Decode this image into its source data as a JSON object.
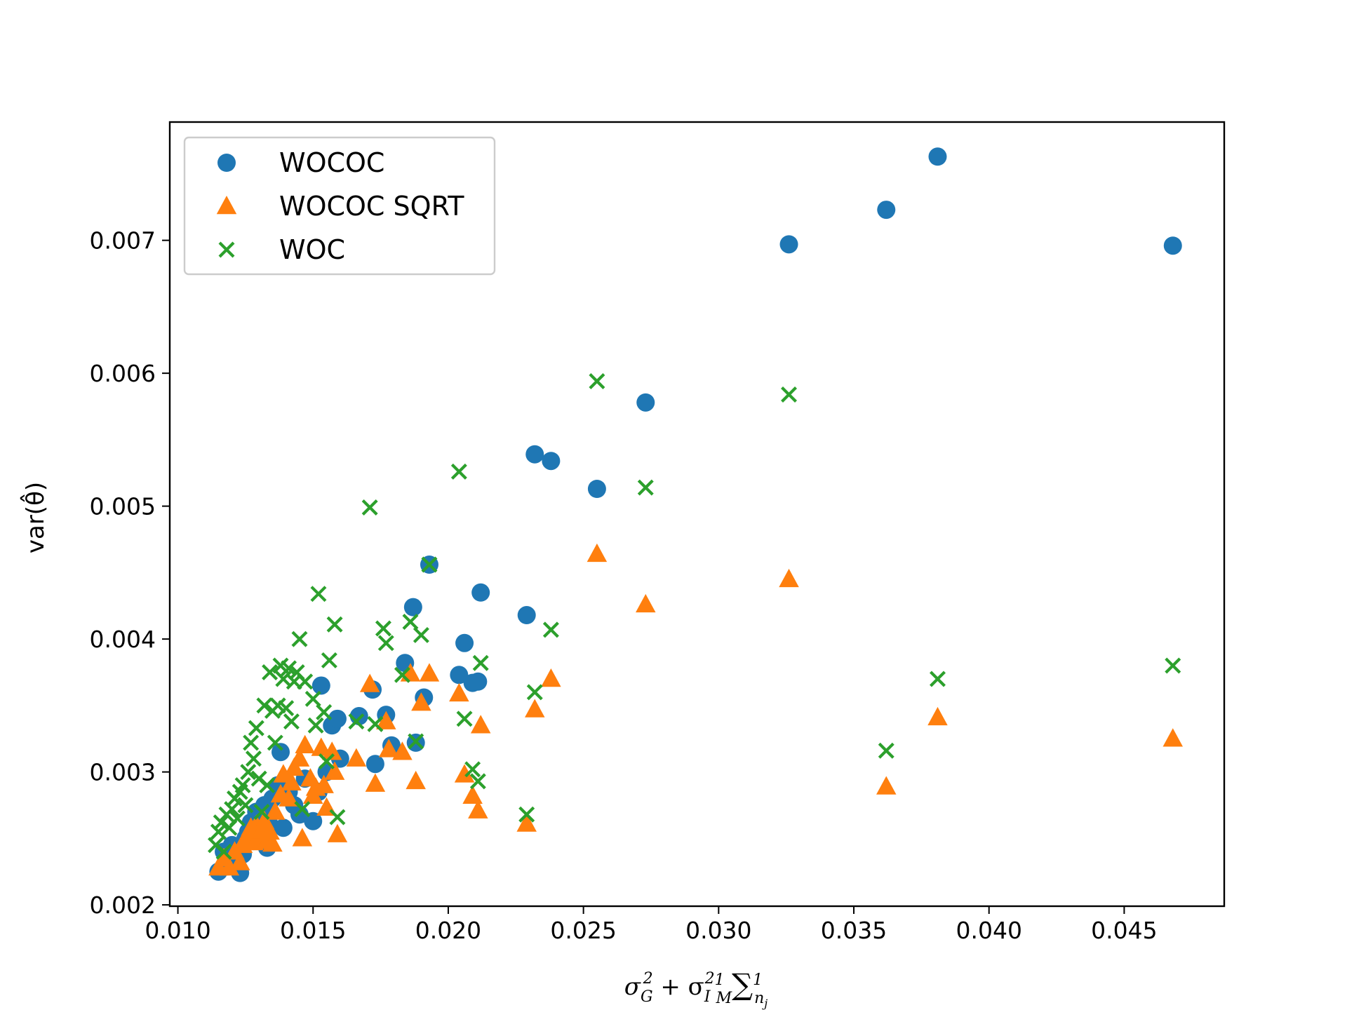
{
  "chart_data": {
    "type": "scatter",
    "title": "",
    "xlabel": "σ_G² + σ_I² (1/M) Σ 1/n_j",
    "ylabel": "var(θ̂)",
    "xlim": [
      0.0097,
      0.0487
    ],
    "ylim": [
      0.00199,
      0.00789
    ],
    "xticks": [
      0.01,
      0.015,
      0.02,
      0.025,
      0.03,
      0.035,
      0.04,
      0.045
    ],
    "xtick_labels": [
      "0.010",
      "0.015",
      "0.020",
      "0.025",
      "0.030",
      "0.035",
      "0.040",
      "0.045"
    ],
    "yticks": [
      0.002,
      0.003,
      0.004,
      0.005,
      0.006,
      0.007
    ],
    "ytick_labels": [
      "0.002",
      "0.003",
      "0.004",
      "0.005",
      "0.006",
      "0.007"
    ],
    "legend_position": "top-left",
    "grid": false,
    "series": [
      {
        "name": "WOCOC",
        "marker": "circle",
        "color": "#1f77b4",
        "points": [
          [
            0.0115,
            0.00225
          ],
          [
            0.0117,
            0.0024
          ],
          [
            0.0118,
            0.00235
          ],
          [
            0.012,
            0.00245
          ],
          [
            0.0121,
            0.0023
          ],
          [
            0.0123,
            0.00224
          ],
          [
            0.0124,
            0.00238
          ],
          [
            0.0125,
            0.0025
          ],
          [
            0.0126,
            0.00255
          ],
          [
            0.0127,
            0.00262
          ],
          [
            0.0128,
            0.00248
          ],
          [
            0.0129,
            0.0027
          ],
          [
            0.013,
            0.00258
          ],
          [
            0.0131,
            0.00266
          ],
          [
            0.0132,
            0.00275
          ],
          [
            0.0133,
            0.00243
          ],
          [
            0.0134,
            0.0026
          ],
          [
            0.0135,
            0.0028
          ],
          [
            0.0137,
            0.0029
          ],
          [
            0.0138,
            0.00315
          ],
          [
            0.0139,
            0.00258
          ],
          [
            0.0141,
            0.00285
          ],
          [
            0.0143,
            0.00275
          ],
          [
            0.0145,
            0.00268
          ],
          [
            0.0147,
            0.00295
          ],
          [
            0.015,
            0.00263
          ],
          [
            0.0152,
            0.00285
          ],
          [
            0.0153,
            0.00365
          ],
          [
            0.0155,
            0.003
          ],
          [
            0.0157,
            0.00335
          ],
          [
            0.0159,
            0.0034
          ],
          [
            0.016,
            0.0031
          ],
          [
            0.0167,
            0.00342
          ],
          [
            0.0172,
            0.00362
          ],
          [
            0.0173,
            0.00306
          ],
          [
            0.0177,
            0.00343
          ],
          [
            0.0179,
            0.0032
          ],
          [
            0.0184,
            0.00382
          ],
          [
            0.0187,
            0.00424
          ],
          [
            0.0188,
            0.00322
          ],
          [
            0.0191,
            0.00356
          ],
          [
            0.0193,
            0.00456
          ],
          [
            0.0204,
            0.00373
          ],
          [
            0.0206,
            0.00397
          ],
          [
            0.0209,
            0.00367
          ],
          [
            0.0211,
            0.00368
          ],
          [
            0.0212,
            0.00435
          ],
          [
            0.0229,
            0.00418
          ],
          [
            0.0232,
            0.00539
          ],
          [
            0.0238,
            0.00534
          ],
          [
            0.0255,
            0.00513
          ],
          [
            0.0273,
            0.00578
          ],
          [
            0.0326,
            0.00697
          ],
          [
            0.0362,
            0.00723
          ],
          [
            0.0381,
            0.00763
          ],
          [
            0.0468,
            0.00696
          ]
        ]
      },
      {
        "name": "WOCOC SQRT",
        "marker": "triangle",
        "color": "#ff7f0e",
        "points": [
          [
            0.0115,
            0.00228
          ],
          [
            0.0117,
            0.00235
          ],
          [
            0.0119,
            0.00228
          ],
          [
            0.0121,
            0.0024
          ],
          [
            0.0123,
            0.00232
          ],
          [
            0.0124,
            0.00245
          ],
          [
            0.0125,
            0.0025
          ],
          [
            0.0126,
            0.00253
          ],
          [
            0.0127,
            0.00258
          ],
          [
            0.0128,
            0.00247
          ],
          [
            0.0129,
            0.0026
          ],
          [
            0.013,
            0.00252
          ],
          [
            0.0131,
            0.00256
          ],
          [
            0.0132,
            0.00263
          ],
          [
            0.0133,
            0.00248
          ],
          [
            0.0134,
            0.00255
          ],
          [
            0.0135,
            0.00246
          ],
          [
            0.0136,
            0.0027
          ],
          [
            0.0138,
            0.00283
          ],
          [
            0.0139,
            0.00298
          ],
          [
            0.0141,
            0.0028
          ],
          [
            0.0142,
            0.00292
          ],
          [
            0.0143,
            0.00303
          ],
          [
            0.0145,
            0.0031
          ],
          [
            0.0146,
            0.0025
          ],
          [
            0.0147,
            0.0032
          ],
          [
            0.0149,
            0.00295
          ],
          [
            0.015,
            0.00282
          ],
          [
            0.0151,
            0.00288
          ],
          [
            0.0153,
            0.00318
          ],
          [
            0.0154,
            0.0029
          ],
          [
            0.0155,
            0.00273
          ],
          [
            0.0157,
            0.00315
          ],
          [
            0.0158,
            0.003
          ],
          [
            0.0159,
            0.00253
          ],
          [
            0.0166,
            0.0031
          ],
          [
            0.0171,
            0.00366
          ],
          [
            0.0173,
            0.00291
          ],
          [
            0.0177,
            0.00338
          ],
          [
            0.0178,
            0.00317
          ],
          [
            0.0183,
            0.00315
          ],
          [
            0.0186,
            0.00374
          ],
          [
            0.0188,
            0.00293
          ],
          [
            0.019,
            0.00352
          ],
          [
            0.0193,
            0.00374
          ],
          [
            0.0204,
            0.00359
          ],
          [
            0.0206,
            0.00298
          ],
          [
            0.0209,
            0.00282
          ],
          [
            0.0211,
            0.00271
          ],
          [
            0.0212,
            0.00335
          ],
          [
            0.0229,
            0.00261
          ],
          [
            0.0232,
            0.00347
          ],
          [
            0.0238,
            0.0037
          ],
          [
            0.0255,
            0.00464
          ],
          [
            0.0273,
            0.00426
          ],
          [
            0.0326,
            0.00445
          ],
          [
            0.0362,
            0.00289
          ],
          [
            0.0381,
            0.00341
          ],
          [
            0.0468,
            0.00325
          ]
        ]
      },
      {
        "name": "WOC",
        "marker": "x",
        "color": "#2ca02c",
        "points": [
          [
            0.0114,
            0.00245
          ],
          [
            0.0115,
            0.00255
          ],
          [
            0.0116,
            0.00262
          ],
          [
            0.0117,
            0.0024
          ],
          [
            0.0118,
            0.00268
          ],
          [
            0.0119,
            0.00258
          ],
          [
            0.012,
            0.00272
          ],
          [
            0.0121,
            0.0028
          ],
          [
            0.0122,
            0.00265
          ],
          [
            0.0123,
            0.00285
          ],
          [
            0.0124,
            0.0029
          ],
          [
            0.0125,
            0.00275
          ],
          [
            0.0126,
            0.003
          ],
          [
            0.0127,
            0.00322
          ],
          [
            0.0128,
            0.0031
          ],
          [
            0.0129,
            0.00333
          ],
          [
            0.013,
            0.00295
          ],
          [
            0.0131,
            0.0027
          ],
          [
            0.0132,
            0.0035
          ],
          [
            0.0133,
            0.0029
          ],
          [
            0.0134,
            0.00375
          ],
          [
            0.0135,
            0.00346
          ],
          [
            0.0136,
            0.00322
          ],
          [
            0.0137,
            0.0035
          ],
          [
            0.0138,
            0.0038
          ],
          [
            0.0139,
            0.0037
          ],
          [
            0.014,
            0.00348
          ],
          [
            0.0141,
            0.00378
          ],
          [
            0.0142,
            0.00338
          ],
          [
            0.0143,
            0.00368
          ],
          [
            0.0144,
            0.00375
          ],
          [
            0.0145,
            0.004
          ],
          [
            0.0146,
            0.00272
          ],
          [
            0.0147,
            0.00368
          ],
          [
            0.015,
            0.00355
          ],
          [
            0.0151,
            0.00335
          ],
          [
            0.0152,
            0.00434
          ],
          [
            0.0154,
            0.00345
          ],
          [
            0.0155,
            0.00308
          ],
          [
            0.0156,
            0.00384
          ],
          [
            0.0158,
            0.00411
          ],
          [
            0.0159,
            0.00266
          ],
          [
            0.0166,
            0.00338
          ],
          [
            0.0171,
            0.00499
          ],
          [
            0.0173,
            0.00336
          ],
          [
            0.0176,
            0.00408
          ],
          [
            0.0177,
            0.00397
          ],
          [
            0.0183,
            0.00373
          ],
          [
            0.0186,
            0.00413
          ],
          [
            0.0188,
            0.00323
          ],
          [
            0.019,
            0.00403
          ],
          [
            0.0193,
            0.00456
          ],
          [
            0.0204,
            0.00526
          ],
          [
            0.0206,
            0.0034
          ],
          [
            0.0209,
            0.00302
          ],
          [
            0.0211,
            0.00293
          ],
          [
            0.0212,
            0.00382
          ],
          [
            0.0229,
            0.00268
          ],
          [
            0.0232,
            0.0036
          ],
          [
            0.0238,
            0.00407
          ],
          [
            0.0255,
            0.00594
          ],
          [
            0.0273,
            0.00514
          ],
          [
            0.0326,
            0.00584
          ],
          [
            0.0362,
            0.00316
          ],
          [
            0.0381,
            0.0037
          ],
          [
            0.0468,
            0.0038
          ]
        ]
      }
    ]
  }
}
